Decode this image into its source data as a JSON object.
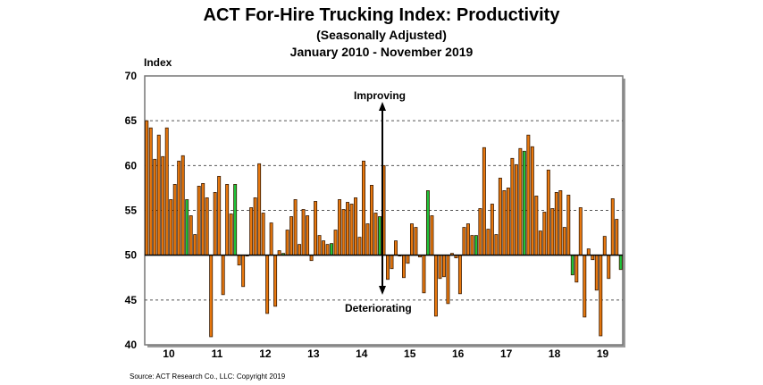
{
  "chart_data": {
    "type": "bar",
    "title": "ACT For-Hire Trucking Index: Productivity",
    "subtitle": "(Seasonally Adjusted)",
    "period": "January 2010 - November 2019",
    "ylabel": "Index",
    "ylim": [
      40,
      70
    ],
    "yticks": [
      40,
      45,
      50,
      55,
      60,
      65,
      70
    ],
    "baseline": 50,
    "grid": true,
    "x_tick_labels": [
      "10",
      "11",
      "12",
      "13",
      "14",
      "15",
      "16",
      "17",
      "18",
      "19"
    ],
    "annotations": {
      "up": "Improving",
      "down": "Deteriorating"
    },
    "source": "Source: ACT Research Co., LLC: Copyright 2019",
    "colors": {
      "bar": "#E8780E",
      "latest_month_bar": "#1FC23A",
      "outline": "#3a1a00"
    },
    "highlight_rule": "November bars shown in green",
    "start": "2010-01",
    "end": "2019-11",
    "values": [
      65.0,
      64.2,
      60.7,
      63.4,
      61.0,
      64.2,
      56.2,
      57.9,
      60.5,
      61.1,
      56.2,
      54.4,
      52.3,
      57.7,
      58.0,
      56.4,
      40.9,
      57.0,
      58.8,
      45.6,
      57.9,
      54.6,
      57.9,
      48.9,
      46.5,
      50.0,
      55.3,
      56.4,
      60.2,
      54.7,
      43.5,
      53.6,
      44.3,
      50.5,
      50.2,
      52.8,
      54.3,
      56.2,
      51.2,
      55.1,
      54.4,
      49.4,
      56.0,
      52.2,
      51.6,
      51.2,
      51.3,
      52.8,
      56.2,
      55.1,
      55.9,
      55.7,
      56.4,
      52.0,
      60.5,
      53.5,
      57.8,
      54.7,
      54.3,
      60.0,
      47.3,
      48.5,
      51.6,
      50.0,
      47.5,
      49.1,
      53.5,
      53.1,
      49.8,
      45.8,
      57.2,
      54.4,
      43.2,
      47.4,
      47.6,
      44.6,
      50.2,
      49.7,
      45.7,
      53.1,
      53.5,
      52.2,
      52.2,
      55.2,
      62.0,
      52.9,
      55.7,
      52.3,
      58.6,
      57.2,
      57.5,
      60.8,
      60.1,
      61.9,
      61.6,
      63.4,
      62.1,
      56.6,
      52.7,
      54.8,
      59.5,
      55.2,
      57.0,
      57.2,
      53.1,
      56.7,
      47.8,
      47.0,
      55.3,
      43.1,
      50.7,
      49.5,
      46.1,
      41.0,
      52.1,
      47.4,
      56.3,
      54.0,
      48.4
    ]
  }
}
